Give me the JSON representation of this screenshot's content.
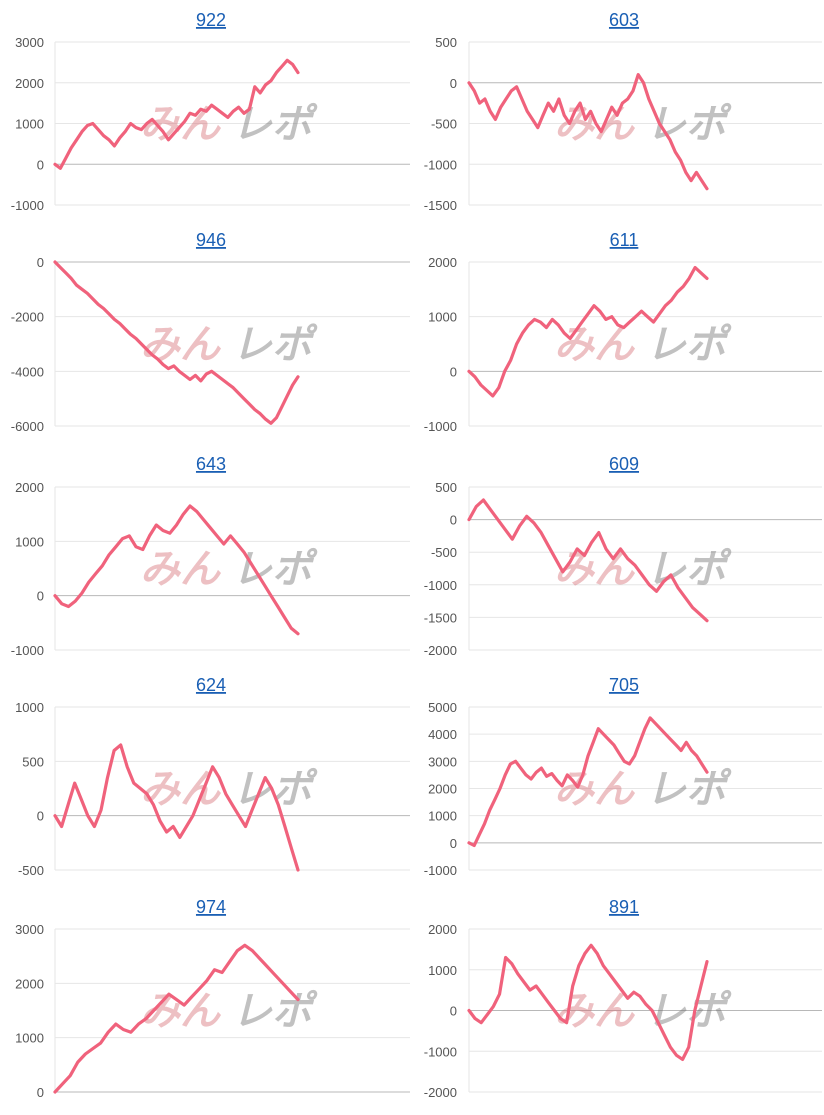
{
  "line_color": "#f0627c",
  "grid_color": "#e6e6e6",
  "zero_line_color": "#b8b8b8",
  "title_color": "#1a5fb4",
  "watermark": "みんレポ",
  "chart_data": [
    {
      "type": "line",
      "title": "922",
      "ylim": [
        -1000,
        3000
      ],
      "yticks": [
        3000,
        2000,
        1000,
        0,
        -1000
      ],
      "series": [
        {
          "values": [
            0,
            -100,
            150,
            400,
            600,
            800,
            950,
            1000,
            850,
            700,
            600,
            450,
            650,
            800,
            1000,
            900,
            850,
            1000,
            1100,
            950,
            800,
            600,
            750,
            900,
            1050,
            1250,
            1200,
            1350,
            1300,
            1450,
            1350,
            1250,
            1150,
            1300,
            1400,
            1250,
            1350,
            1900,
            1750,
            1950,
            2050,
            2250,
            2400,
            2550,
            2450,
            2250
          ]
        }
      ]
    },
    {
      "type": "line",
      "title": "603",
      "ylim": [
        -1500,
        500
      ],
      "yticks": [
        500,
        0,
        -500,
        -1000,
        -1500
      ],
      "series": [
        {
          "values": [
            0,
            -100,
            -250,
            -200,
            -350,
            -450,
            -300,
            -200,
            -100,
            -50,
            -200,
            -350,
            -450,
            -550,
            -400,
            -250,
            -350,
            -200,
            -400,
            -500,
            -350,
            -250,
            -450,
            -350,
            -500,
            -600,
            -450,
            -300,
            -400,
            -250,
            -200,
            -100,
            100,
            0,
            -200,
            -350,
            -500,
            -600,
            -700,
            -850,
            -950,
            -1100,
            -1200,
            -1100,
            -1200,
            -1300
          ]
        }
      ]
    },
    {
      "type": "line",
      "title": "946",
      "ylim": [
        -6000,
        0
      ],
      "yticks": [
        0,
        -2000,
        -4000,
        -6000
      ],
      "series": [
        {
          "values": [
            0,
            -200,
            -400,
            -600,
            -850,
            -1000,
            -1150,
            -1350,
            -1550,
            -1700,
            -1900,
            -2100,
            -2250,
            -2450,
            -2650,
            -2800,
            -3000,
            -3200,
            -3400,
            -3550,
            -3750,
            -3900,
            -3800,
            -4000,
            -4150,
            -4300,
            -4150,
            -4350,
            -4100,
            -4000,
            -4150,
            -4300,
            -4450,
            -4600,
            -4800,
            -5000,
            -5200,
            -5400,
            -5550,
            -5750,
            -5900,
            -5700,
            -5300,
            -4900,
            -4500,
            -4200
          ]
        }
      ]
    },
    {
      "type": "line",
      "title": "611",
      "ylim": [
        -1000,
        2000
      ],
      "yticks": [
        2000,
        1000,
        0,
        -1000
      ],
      "series": [
        {
          "values": [
            0,
            -100,
            -250,
            -350,
            -450,
            -300,
            0,
            200,
            500,
            700,
            850,
            950,
            900,
            800,
            950,
            850,
            700,
            600,
            750,
            900,
            1050,
            1200,
            1100,
            950,
            1000,
            850,
            800,
            900,
            1000,
            1100,
            1000,
            900,
            1050,
            1200,
            1300,
            1450,
            1550,
            1700,
            1900,
            1800,
            1700
          ]
        }
      ]
    },
    {
      "type": "line",
      "title": "643",
      "ylim": [
        -1000,
        2000
      ],
      "yticks": [
        2000,
        1000,
        0,
        -1000
      ],
      "series": [
        {
          "values": [
            0,
            -150,
            -200,
            -100,
            50,
            250,
            400,
            550,
            750,
            900,
            1050,
            1100,
            900,
            850,
            1100,
            1300,
            1200,
            1150,
            1300,
            1500,
            1650,
            1550,
            1400,
            1250,
            1100,
            950,
            1100,
            950,
            800,
            600,
            400,
            200,
            0,
            -200,
            -400,
            -600,
            -700
          ]
        }
      ]
    },
    {
      "type": "line",
      "title": "609",
      "ylim": [
        -2000,
        500
      ],
      "yticks": [
        500,
        0,
        -500,
        -1000,
        -1500,
        -2000
      ],
      "series": [
        {
          "values": [
            0,
            200,
            300,
            150,
            0,
            -150,
            -300,
            -100,
            50,
            -50,
            -200,
            -400,
            -600,
            -800,
            -650,
            -450,
            -550,
            -350,
            -200,
            -450,
            -600,
            -450,
            -600,
            -700,
            -850,
            -1000,
            -1100,
            -950,
            -850,
            -1050,
            -1200,
            -1350,
            -1450,
            -1550
          ]
        }
      ]
    },
    {
      "type": "line",
      "title": "624",
      "ylim": [
        -500,
        1000
      ],
      "yticks": [
        1000,
        500,
        0,
        -500
      ],
      "series": [
        {
          "values": [
            0,
            -100,
            100,
            300,
            150,
            0,
            -100,
            50,
            350,
            600,
            650,
            450,
            300,
            250,
            200,
            100,
            -50,
            -150,
            -100,
            -200,
            -100,
            0,
            150,
            300,
            450,
            350,
            200,
            100,
            0,
            -100,
            50,
            200,
            350,
            250,
            100,
            -100,
            -300,
            -500
          ]
        }
      ]
    },
    {
      "type": "line",
      "title": "705",
      "ylim": [
        -1000,
        5000
      ],
      "yticks": [
        5000,
        4000,
        3000,
        2000,
        1000,
        0,
        -1000
      ],
      "series": [
        {
          "values": [
            0,
            -100,
            300,
            700,
            1200,
            1600,
            2000,
            2500,
            2900,
            3000,
            2750,
            2500,
            2350,
            2600,
            2750,
            2450,
            2550,
            2300,
            2100,
            2500,
            2300,
            2050,
            2500,
            3200,
            3700,
            4200,
            4000,
            3800,
            3600,
            3300,
            3000,
            2900,
            3200,
            3700,
            4200,
            4600,
            4400,
            4200,
            4000,
            3800,
            3600,
            3400,
            3700,
            3400,
            3200,
            2900,
            2600
          ]
        }
      ]
    },
    {
      "type": "line",
      "title": "974",
      "ylim": [
        0,
        3000
      ],
      "yticks": [
        3000,
        2000,
        1000,
        0
      ],
      "series": [
        {
          "values": [
            0,
            150,
            300,
            550,
            700,
            800,
            900,
            1100,
            1250,
            1150,
            1100,
            1250,
            1350,
            1500,
            1650,
            1800,
            1700,
            1600,
            1750,
            1900,
            2050,
            2250,
            2200,
            2400,
            2600,
            2700,
            2600,
            2450,
            2300,
            2150,
            2000,
            1850,
            1700
          ]
        }
      ]
    },
    {
      "type": "line",
      "title": "891",
      "ylim": [
        -2000,
        2000
      ],
      "yticks": [
        2000,
        1000,
        0,
        -1000,
        -2000
      ],
      "series": [
        {
          "values": [
            0,
            -200,
            -300,
            -100,
            100,
            400,
            1300,
            1150,
            900,
            700,
            500,
            600,
            400,
            200,
            0,
            -200,
            -300,
            600,
            1100,
            1400,
            1600,
            1400,
            1100,
            900,
            700,
            500,
            300,
            450,
            350,
            150,
            0,
            -300,
            -600,
            -900,
            -1100,
            -1200,
            -900,
            0,
            600,
            1200
          ]
        }
      ]
    }
  ]
}
